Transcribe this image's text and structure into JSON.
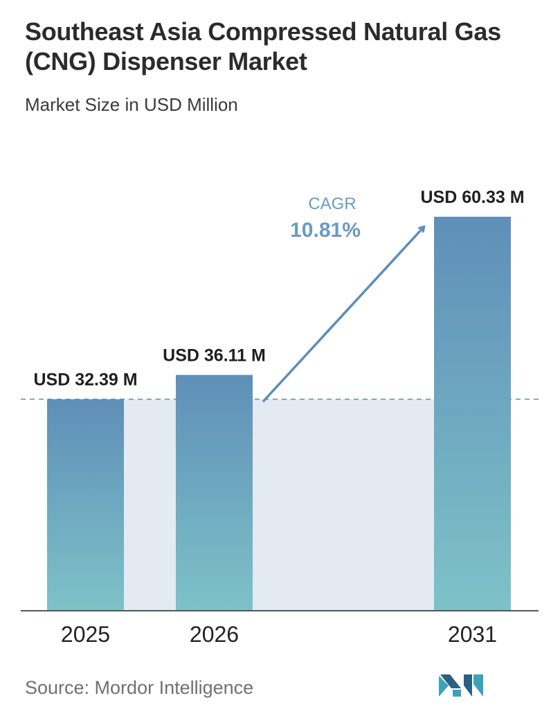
{
  "title": "Southeast Asia Compressed Natural Gas (CNG) Dispenser Market",
  "subtitle": "Market Size in USD Million",
  "source": "Source:  Mordor Intelligence",
  "colors": {
    "bar_top": "#5f8fb8",
    "bar_bottom": "#7ec2c8",
    "band": "#e3eaf2",
    "arrow": "#5b8db8",
    "cagr_text": "#6a9ac2",
    "axis": "#555555",
    "dashed": "#5f8aad"
  },
  "chart_data": {
    "type": "bar",
    "title": "Southeast Asia Compressed Natural Gas (CNG) Dispenser Market",
    "subtitle": "Market Size in USD Million",
    "categories": [
      "2025",
      "2026",
      "2031"
    ],
    "values": [
      32.39,
      36.11,
      60.33
    ],
    "value_labels": [
      "USD 32.39 M",
      "USD 36.11 M",
      "USD 60.33 M"
    ],
    "ylim": [
      0,
      60.33
    ],
    "annotation": {
      "label": "CAGR",
      "value": "10.81%"
    },
    "grid": false,
    "legend": "none"
  }
}
